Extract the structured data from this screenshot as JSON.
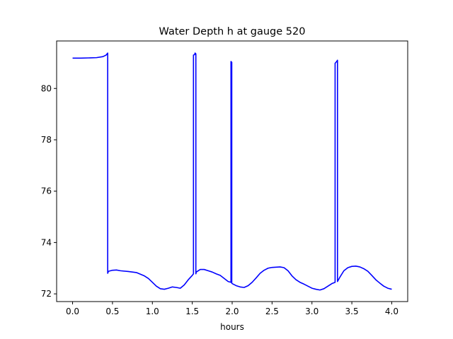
{
  "chart_data": {
    "type": "line",
    "title": "Water Depth h at gauge 520",
    "xlabel": "hours",
    "ylabel": "",
    "xlim": [
      -0.2,
      4.2
    ],
    "ylim": [
      71.7,
      81.85
    ],
    "xticks": [
      0.0,
      0.5,
      1.0,
      1.5,
      2.0,
      2.5,
      3.0,
      3.5,
      4.0
    ],
    "xtick_labels": [
      "0.0",
      "0.5",
      "1.0",
      "1.5",
      "2.0",
      "2.5",
      "3.0",
      "3.5",
      "4.0"
    ],
    "yticks": [
      72,
      74,
      76,
      78,
      80
    ],
    "ytick_labels": [
      "72",
      "74",
      "76",
      "78",
      "80"
    ],
    "grid": false,
    "series": [
      {
        "color": "#0000ff",
        "x": [
          0.0,
          0.1,
          0.2,
          0.3,
          0.38,
          0.42,
          0.44,
          0.44,
          0.45,
          0.5,
          0.55,
          0.6,
          0.7,
          0.8,
          0.9,
          0.95,
          1.0,
          1.05,
          1.1,
          1.15,
          1.2,
          1.25,
          1.3,
          1.35,
          1.4,
          1.45,
          1.5,
          1.515,
          1.515,
          1.53,
          1.535,
          1.545,
          1.545,
          1.55,
          1.6,
          1.65,
          1.7,
          1.75,
          1.8,
          1.85,
          1.9,
          1.95,
          1.985,
          1.985,
          1.995,
          1.995,
          2.0,
          2.05,
          2.1,
          2.15,
          2.2,
          2.25,
          2.3,
          2.35,
          2.4,
          2.45,
          2.5,
          2.55,
          2.6,
          2.65,
          2.7,
          2.75,
          2.8,
          2.85,
          2.9,
          2.95,
          3.0,
          3.05,
          3.1,
          3.15,
          3.2,
          3.25,
          3.29,
          3.29,
          3.31,
          3.32,
          3.32,
          3.35,
          3.4,
          3.45,
          3.5,
          3.55,
          3.6,
          3.65,
          3.7,
          3.75,
          3.8,
          3.85,
          3.9,
          3.95,
          4.0
        ],
        "y": [
          81.18,
          81.18,
          81.19,
          81.2,
          81.24,
          81.3,
          81.38,
          72.8,
          72.88,
          72.92,
          72.93,
          72.9,
          72.87,
          72.83,
          72.7,
          72.6,
          72.45,
          72.3,
          72.2,
          72.18,
          72.22,
          72.27,
          72.25,
          72.22,
          72.35,
          72.55,
          72.72,
          72.78,
          81.3,
          81.32,
          81.38,
          81.35,
          72.78,
          72.85,
          72.95,
          72.95,
          72.9,
          72.85,
          72.78,
          72.72,
          72.6,
          72.48,
          72.45,
          81.05,
          81.02,
          72.42,
          72.4,
          72.32,
          72.27,
          72.25,
          72.32,
          72.45,
          72.62,
          72.8,
          72.92,
          73.0,
          73.03,
          73.04,
          73.05,
          73.02,
          72.9,
          72.7,
          72.55,
          72.45,
          72.38,
          72.3,
          72.22,
          72.18,
          72.15,
          72.2,
          72.3,
          72.4,
          72.45,
          80.98,
          81.05,
          81.1,
          72.48,
          72.65,
          72.9,
          73.02,
          73.07,
          73.08,
          73.05,
          72.98,
          72.88,
          72.72,
          72.55,
          72.42,
          72.3,
          72.22,
          72.18
        ]
      }
    ]
  }
}
